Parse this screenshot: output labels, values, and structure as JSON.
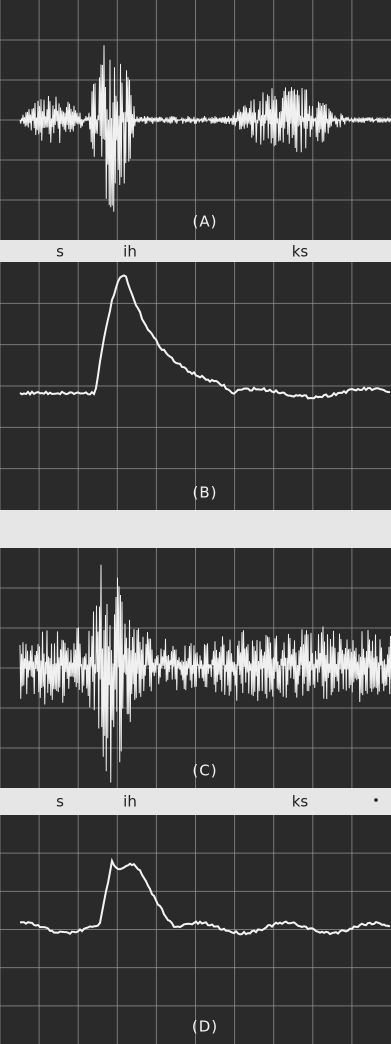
{
  "panels": [
    {
      "label": "(A)"
    },
    {
      "label": "(B)"
    },
    {
      "label": "(C)"
    },
    {
      "label": "(D)"
    }
  ],
  "phoneme_rows": [
    [
      "s",
      "ih",
      "ks"
    ],
    [
      "s",
      "ih",
      "ks"
    ]
  ]
}
